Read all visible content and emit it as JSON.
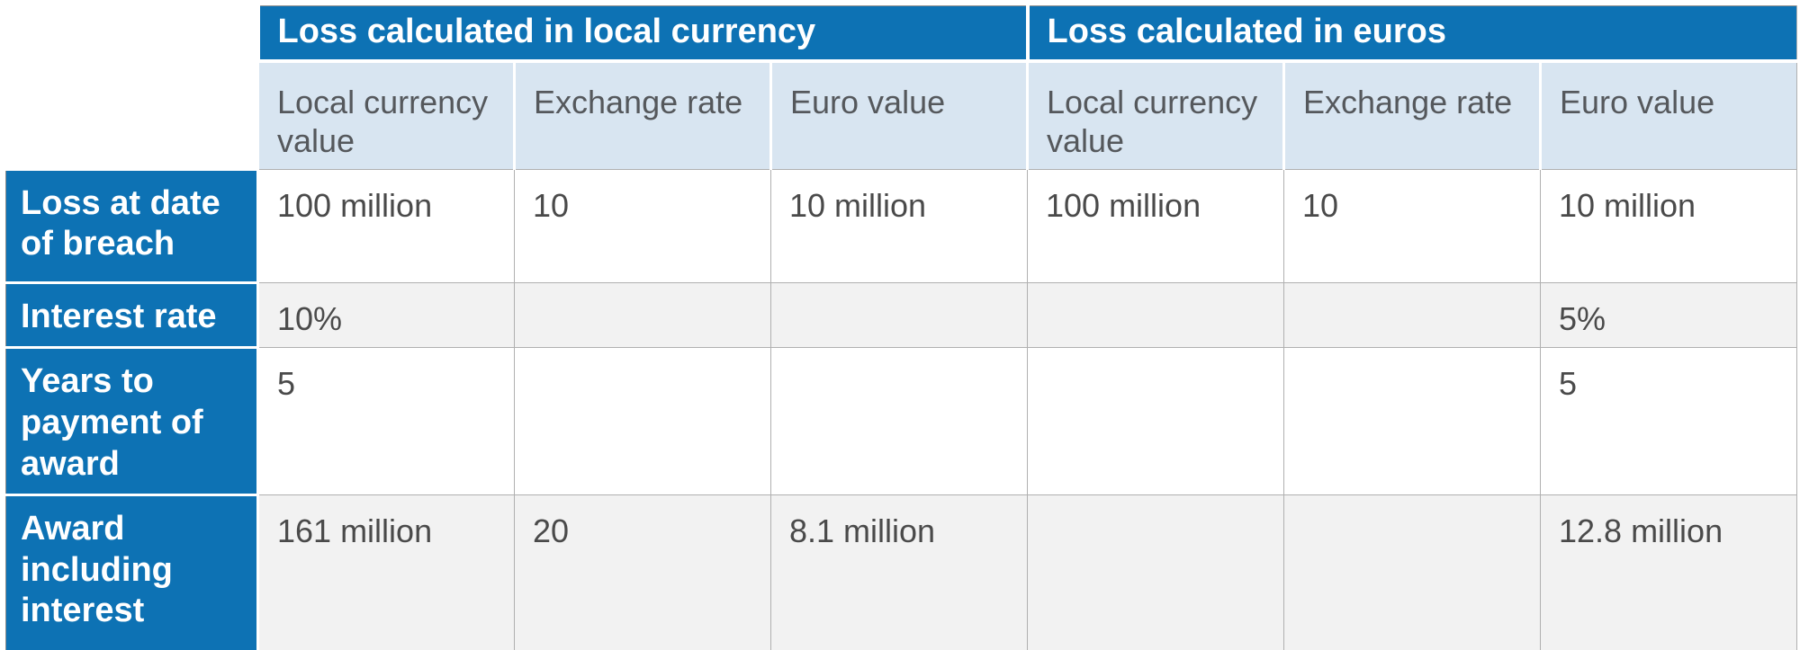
{
  "table": {
    "group_headers": [
      "Loss calculated in local currency",
      "Loss calculated in euros"
    ],
    "column_headers": [
      "Local currency value",
      "Exchange rate",
      "Euro value",
      "Local currency value",
      "Exchange rate",
      "Euro value"
    ],
    "rows": [
      {
        "header": "Loss at date of breach",
        "cells": [
          "100 million",
          "10",
          "10 million",
          "100 million",
          "10",
          "10 million"
        ]
      },
      {
        "header": "Interest rate",
        "cells": [
          "10%",
          "",
          "",
          "",
          "",
          "5%"
        ]
      },
      {
        "header": "Years to payment of award",
        "cells": [
          "5",
          "",
          "",
          "",
          "",
          "5"
        ]
      },
      {
        "header": "Award including interest",
        "cells": [
          "161 million",
          "20",
          "8.1 million",
          "",
          "",
          "12.8 million"
        ]
      }
    ],
    "colors": {
      "header_blue": "#0d72b4",
      "subheader_blue": "#d8e5f1",
      "row_alt_gray": "#f2f2f2",
      "cell_border": "#b0b0b0",
      "header_text": "#ffffff",
      "body_text": "#4a4a4a",
      "subheader_text": "#55585c"
    }
  }
}
